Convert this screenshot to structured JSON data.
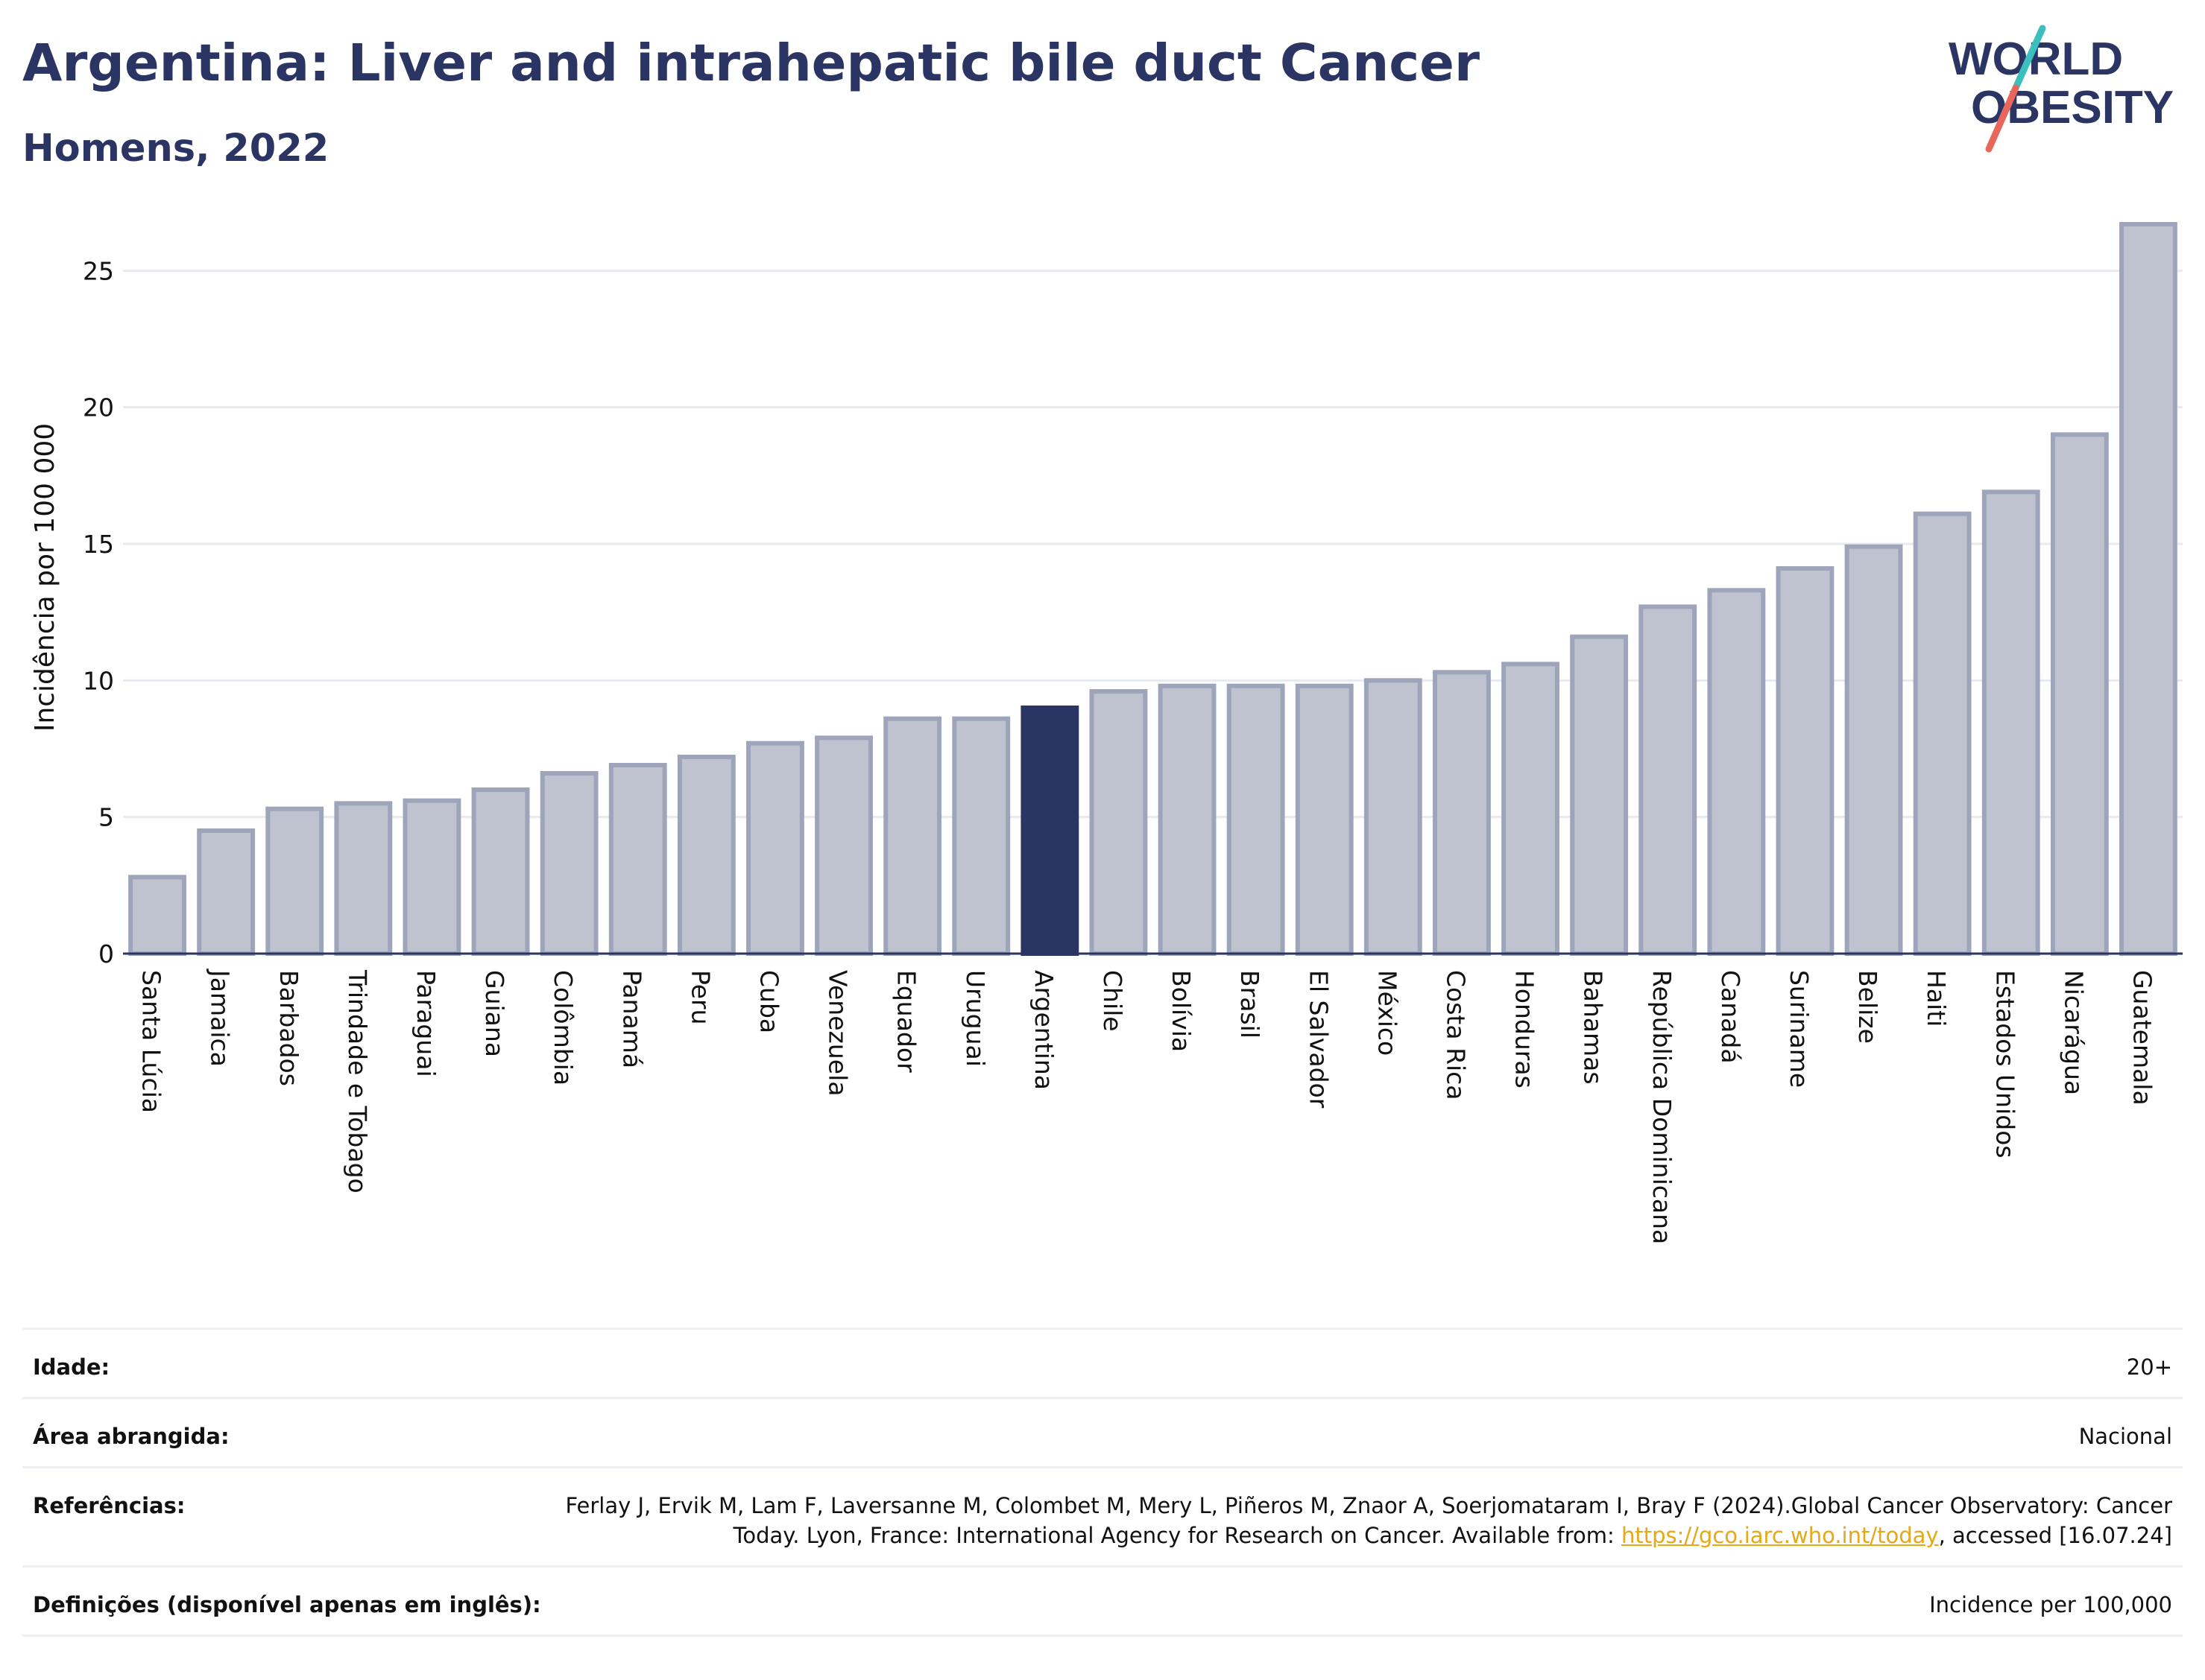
{
  "header": {
    "title": "Argentina: Liver and intrahepatic bile duct Cancer",
    "subtitle": "Homens, 2022"
  },
  "logo": {
    "line1": "WORLD",
    "line2": "OBESITY",
    "colors": {
      "text": "#2b3563",
      "slash_top": "#3bbfbf",
      "slash_bottom": "#e8675c"
    }
  },
  "colors": {
    "bar_default": "#bfc3d0",
    "bar_default_border": "#9ea4ba",
    "bar_highlight": "#2b3563",
    "grid": "#e8eaf0",
    "axis": "#2b3563",
    "link": "#e6a817"
  },
  "chart_data": {
    "type": "bar",
    "ylabel": "Incidência por 100 000",
    "xlabel": "",
    "ylim": [
      0,
      27
    ],
    "yticks": [
      0,
      5,
      10,
      15,
      20,
      25
    ],
    "grid": true,
    "highlight": "Argentina",
    "categories": [
      "Santa Lúcia",
      "Jamaica",
      "Barbados",
      "Trindade e Tobago",
      "Paraguai",
      "Guiana",
      "Colômbia",
      "Panamá",
      "Peru",
      "Cuba",
      "Venezuela",
      "Equador",
      "Uruguai",
      "Argentina",
      "Chile",
      "Bolívia",
      "Brasil",
      "El Salvador",
      "México",
      "Costa Rica",
      "Honduras",
      "Bahamas",
      "República Dominicana",
      "Canadá",
      "Suriname",
      "Belize",
      "Haiti",
      "Estados Unidos",
      "Nicarágua",
      "Guatemala"
    ],
    "values": [
      2.8,
      4.5,
      5.3,
      5.5,
      5.6,
      6.0,
      6.6,
      6.9,
      7.2,
      7.7,
      7.9,
      8.6,
      8.6,
      9.0,
      9.6,
      9.8,
      9.8,
      9.8,
      10.0,
      10.3,
      10.6,
      11.6,
      12.7,
      13.3,
      14.1,
      14.9,
      16.1,
      16.9,
      19.0,
      26.7
    ]
  },
  "meta": {
    "age_label": "Idade:",
    "age_value": "20+",
    "area_label": "Área abrangida:",
    "area_value": "Nacional",
    "ref_label": "Referências:",
    "ref_text_1": "Ferlay J, Ervik M, Lam F, Laversanne M, Colombet M, Mery L, Piñeros M, Znaor A, Soerjomataram I, Bray F (2024).Global Cancer Observatory: Cancer Today. Lyon, France: International Agency for Research on Cancer. Available from: ",
    "ref_link": "https://gco.iarc.who.int/today",
    "ref_text_2": ", accessed [16.07.24]",
    "def_label": "Definições (disponível apenas em inglês):",
    "def_value": "Incidence per 100,000"
  }
}
